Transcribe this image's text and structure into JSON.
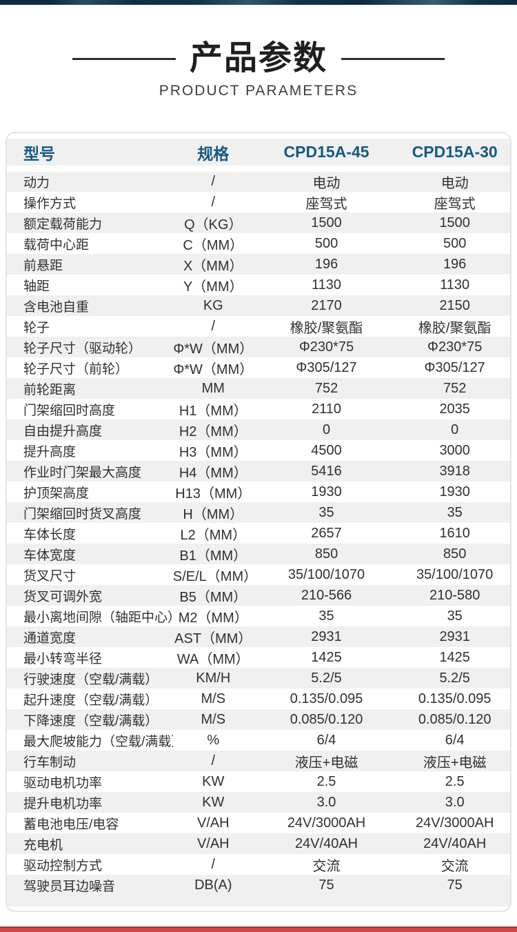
{
  "page": {
    "top_bar_color": "#0c2b3e",
    "bottom_bar_color": "#cb4646",
    "accent_blue": "#165880",
    "stripe_gray": "#f0f0f0"
  },
  "header": {
    "title": "产品参数",
    "subtitle": "PRODUCT PARAMETERS"
  },
  "table": {
    "columns": [
      "型号",
      "规格",
      "CPD15A-45",
      "CPD15A-30"
    ],
    "rows": [
      {
        "label": "动力",
        "spec": "/",
        "v1": "电动",
        "v2": "电动"
      },
      {
        "label": "操作方式",
        "spec": "/",
        "v1": "座驾式",
        "v2": "座驾式"
      },
      {
        "label": "额定载荷能力",
        "spec": "Q（KG）",
        "v1": "1500",
        "v2": "1500"
      },
      {
        "label": "载荷中心距",
        "spec": "C（MM）",
        "v1": "500",
        "v2": "500"
      },
      {
        "label": "前悬距",
        "spec": "X（MM）",
        "v1": "196",
        "v2": "196"
      },
      {
        "label": "轴距",
        "spec": "Y（MM）",
        "v1": "1130",
        "v2": "1130"
      },
      {
        "label": "含电池自重",
        "spec": "KG",
        "v1": "2170",
        "v2": "2150"
      },
      {
        "label": "轮子",
        "spec": "/",
        "v1": "橡胶/聚氨酯",
        "v2": "橡胶/聚氨酯"
      },
      {
        "label": "轮子尺寸（驱动轮）",
        "spec": "Φ*W（MM）",
        "v1": "Φ230*75",
        "v2": "Φ230*75"
      },
      {
        "label": "轮子尺寸（前轮）",
        "spec": "Φ*W（MM）",
        "v1": "Φ305/127",
        "v2": "Φ305/127"
      },
      {
        "label": "前轮距离",
        "spec": "MM",
        "v1": "752",
        "v2": "752"
      },
      {
        "label": "门架缩回时高度",
        "spec": "H1（MM）",
        "v1": "2110",
        "v2": "2035"
      },
      {
        "label": "自由提升高度",
        "spec": "H2（MM）",
        "v1": "0",
        "v2": "0"
      },
      {
        "label": "提升高度",
        "spec": "H3（MM）",
        "v1": "4500",
        "v2": "3000"
      },
      {
        "label": "作业时门架最大高度",
        "spec": "H4（MM）",
        "v1": "5416",
        "v2": "3918"
      },
      {
        "label": "护顶架高度",
        "spec": "H13（MM）",
        "v1": "1930",
        "v2": "1930"
      },
      {
        "label": "门架缩回时货叉高度",
        "spec": "H（MM）",
        "v1": "35",
        "v2": "35"
      },
      {
        "label": "车体长度",
        "spec": "L2（MM）",
        "v1": "2657",
        "v2": "1610"
      },
      {
        "label": "车体宽度",
        "spec": "B1（MM）",
        "v1": "850",
        "v2": "850"
      },
      {
        "label": "货叉尺寸",
        "spec": "S/E/L（MM）",
        "v1": "35/100/1070",
        "v2": "35/100/1070"
      },
      {
        "label": "货叉可调外宽",
        "spec": "B5（MM）",
        "v1": "210-566",
        "v2": "210-580"
      },
      {
        "label": "最小离地间隙（轴距中心）",
        "spec": "M2（MM）",
        "v1": "35",
        "v2": "35"
      },
      {
        "label": "通道宽度",
        "spec": "AST（MM）",
        "v1": "2931",
        "v2": "2931"
      },
      {
        "label": "最小转弯半径",
        "spec": "WA（MM）",
        "v1": "1425",
        "v2": "1425"
      },
      {
        "label": "行驶速度（空载/满载）",
        "spec": "KM/H",
        "v1": "5.2/5",
        "v2": "5.2/5"
      },
      {
        "label": "起升速度（空载/满载）",
        "spec": "M/S",
        "v1": "0.135/0.095",
        "v2": "0.135/0.095"
      },
      {
        "label": "下降速度（空载/满载）",
        "spec": "M/S",
        "v1": "0.085/0.120",
        "v2": "0.085/0.120"
      },
      {
        "label": "最大爬坡能力（空载/满载）",
        "spec": "%",
        "v1": "6/4",
        "v2": "6/4"
      },
      {
        "label": "行车制动",
        "spec": "/",
        "v1": "液压+电磁",
        "v2": "液压+电磁"
      },
      {
        "label": "驱动电机功率",
        "spec": "KW",
        "v1": "2.5",
        "v2": "2.5"
      },
      {
        "label": "提升电机功率",
        "spec": "KW",
        "v1": "3.0",
        "v2": "3.0"
      },
      {
        "label": "蓄电池电压/电容",
        "spec": "V/AH",
        "v1": "24V/3000AH",
        "v2": "24V/3000AH"
      },
      {
        "label": "充电机",
        "spec": "V/AH",
        "v1": "24V/40AH",
        "v2": "24V/40AH"
      },
      {
        "label": "驱动控制方式",
        "spec": "/",
        "v1": "交流",
        "v2": "交流"
      },
      {
        "label": "驾驶员耳边噪音",
        "spec": "DB(A)",
        "v1": "75",
        "v2": "75"
      }
    ]
  }
}
